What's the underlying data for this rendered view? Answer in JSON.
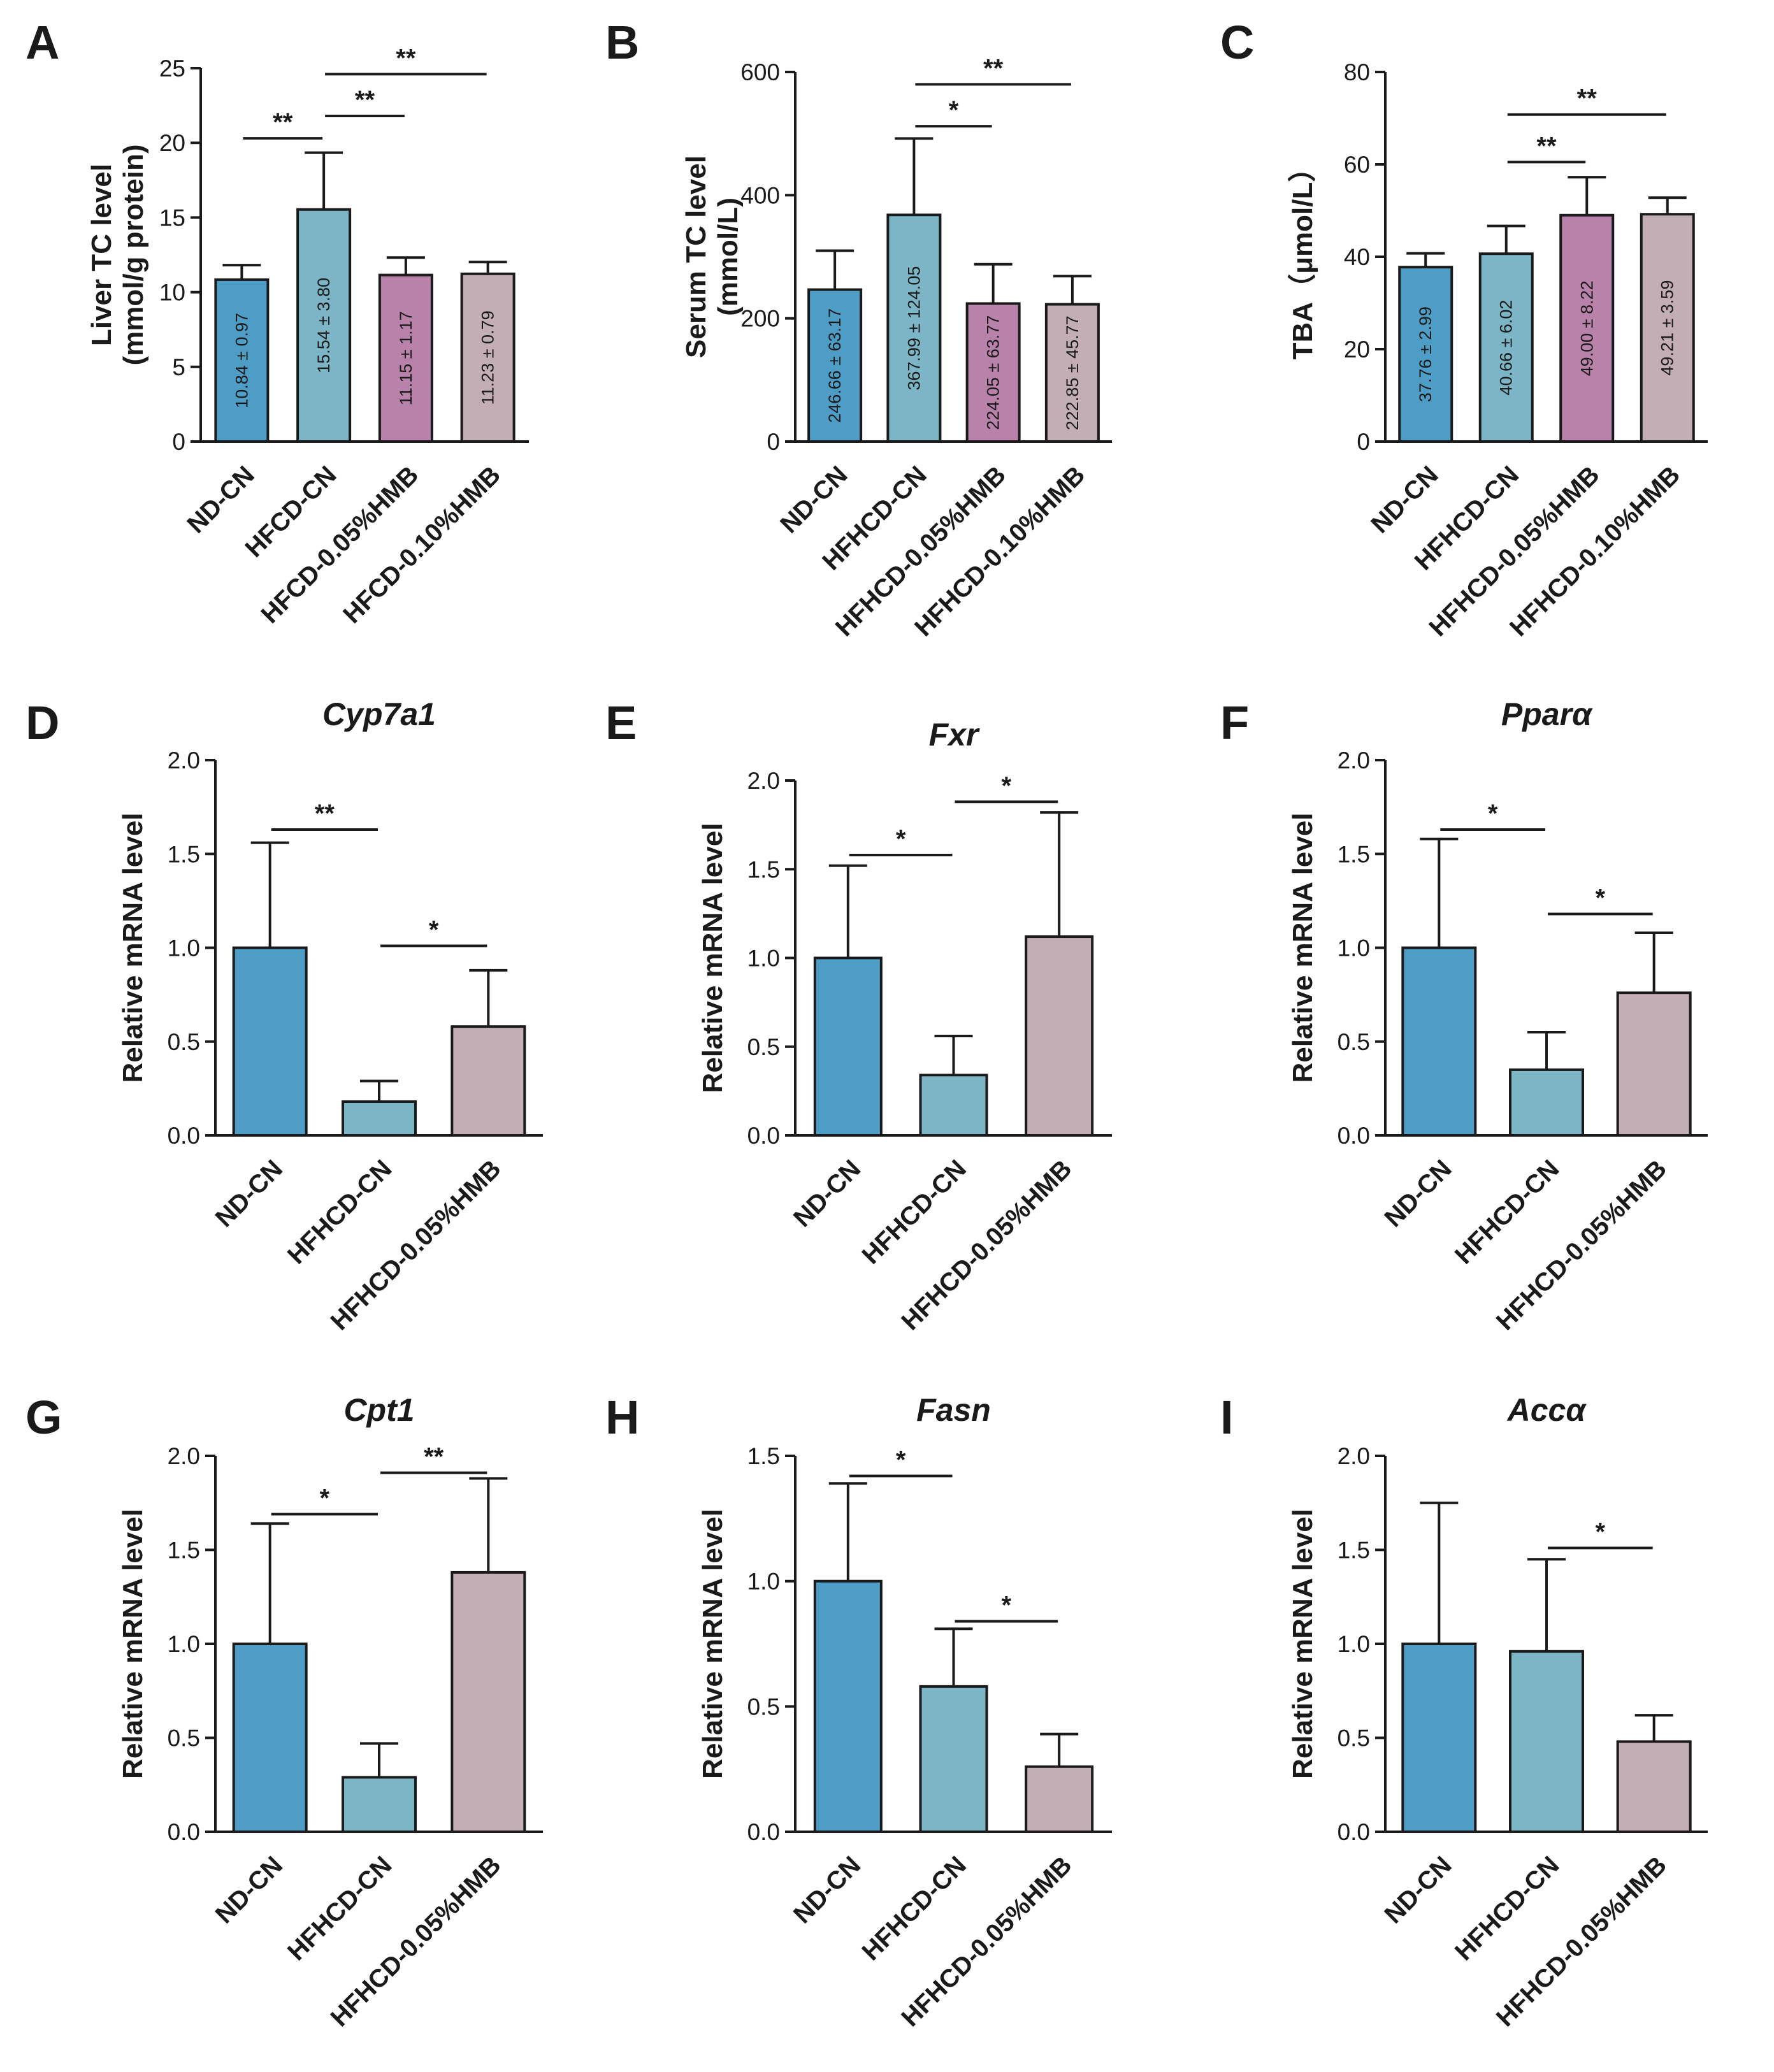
{
  "chart_data": [
    {
      "id": "A",
      "type": "bar",
      "title": "",
      "ylabel": "Liver TC level",
      "ylabel2": "(mmol/g protein)",
      "xlabel": "",
      "ylim": [
        0,
        25
      ],
      "yticks": [
        "0",
        "5",
        "10",
        "15",
        "20",
        "25"
      ],
      "categories": [
        "ND-CN",
        "HFCD-CN",
        "HFCD-0.05%HMB",
        "HFCD-0.10%HMB"
      ],
      "values": [
        10.84,
        15.54,
        11.15,
        11.23
      ],
      "errors": [
        0.97,
        3.8,
        1.17,
        0.79
      ],
      "value_labels": [
        "10.84 ± 0.97",
        "15.54 ± 3.80",
        "11.15 ± 1.17",
        "11.23 ± 0.79"
      ],
      "colors": [
        "#4e9dc6",
        "#7cb6c6",
        "#b882aa",
        "#c4aeb6"
      ],
      "significance": [
        {
          "from": 0,
          "to": 1,
          "label": "**",
          "y": 20.3
        },
        {
          "from": 1,
          "to": 2,
          "label": "**",
          "y": 21.8
        },
        {
          "from": 1,
          "to": 3,
          "label": "**",
          "y": 24.6
        }
      ]
    },
    {
      "id": "B",
      "type": "bar",
      "title": "",
      "ylabel": "Serum TC level",
      "ylabel2": "(mmol/L)",
      "xlabel": "",
      "ylim": [
        0,
        600
      ],
      "yticks": [
        "0",
        "200",
        "400",
        "600"
      ],
      "categories": [
        "ND-CN",
        "HFHCD-CN",
        "HFHCD-0.05%HMB",
        "HFHCD-0.10%HMB"
      ],
      "values": [
        246.66,
        367.99,
        224.05,
        222.85
      ],
      "errors": [
        63.17,
        124.05,
        63.77,
        45.77
      ],
      "value_labels": [
        "246.66 ± 63.17",
        "367.99 ± 124.05",
        "224.05 ± 63.77",
        "222.85 ± 45.77"
      ],
      "colors": [
        "#4e9dc6",
        "#7cb6c6",
        "#b882aa",
        "#c4aeb6"
      ],
      "significance": [
        {
          "from": 1,
          "to": 2,
          "label": "*",
          "y": 512
        },
        {
          "from": 1,
          "to": 3,
          "label": "**",
          "y": 580
        }
      ]
    },
    {
      "id": "C",
      "type": "bar",
      "title": "",
      "ylabel": "TBA（μmol/L）",
      "ylabel2": "",
      "xlabel": "",
      "ylim": [
        0,
        80
      ],
      "yticks": [
        "0",
        "20",
        "40",
        "60",
        "80"
      ],
      "categories": [
        "ND-CN",
        "HFHCD-CN",
        "HFHCD-0.05%HMB",
        "HFHCD-0.10%HMB"
      ],
      "values": [
        37.76,
        40.66,
        49.0,
        49.21
      ],
      "errors": [
        2.99,
        6.02,
        8.22,
        3.59
      ],
      "value_labels": [
        "37.76 ± 2.99",
        "40.66 ± 6.02",
        "49.00 ± 8.22",
        "49.21 ± 3.59"
      ],
      "colors": [
        "#4e9dc6",
        "#7cb6c6",
        "#b882aa",
        "#c4aeb6"
      ],
      "significance": [
        {
          "from": 1,
          "to": 2,
          "label": "**",
          "y": 60.5
        },
        {
          "from": 1,
          "to": 3,
          "label": "**",
          "y": 70.8
        }
      ]
    },
    {
      "id": "D",
      "type": "bar",
      "title": "Cyp7a1",
      "ylabel": "Relative mRNA level",
      "ylabel2": "",
      "xlabel": "",
      "ylim": [
        0,
        2.0
      ],
      "yticks": [
        "0.0",
        "0.5",
        "1.0",
        "1.5",
        "2.0"
      ],
      "categories": [
        "ND-CN",
        "HFHCD-CN",
        "HFHCD-0.05%HMB"
      ],
      "values": [
        1.0,
        0.18,
        0.58
      ],
      "errors": [
        0.56,
        0.11,
        0.3
      ],
      "value_labels": [],
      "colors": [
        "#4e9dc6",
        "#7cb6c6",
        "#c4aeb6"
      ],
      "significance": [
        {
          "from": 0,
          "to": 1,
          "label": "**",
          "y": 1.63
        },
        {
          "from": 1,
          "to": 2,
          "label": "*",
          "y": 1.01
        }
      ]
    },
    {
      "id": "E",
      "type": "bar",
      "title": "Fxr",
      "ylabel": "Relative mRNA level",
      "ylabel2": "",
      "xlabel": "",
      "ylim": [
        0,
        2.0
      ],
      "yticks": [
        "0.0",
        "0.5",
        "1.0",
        "1.5",
        "2.0"
      ],
      "categories": [
        "ND-CN",
        "HFHCD-CN",
        "HFHCD-0.05%HMB"
      ],
      "values": [
        1.0,
        0.34,
        1.12
      ],
      "errors": [
        0.52,
        0.22,
        0.7
      ],
      "value_labels": [],
      "colors": [
        "#4e9dc6",
        "#7cb6c6",
        "#c4aeb6"
      ],
      "significance": [
        {
          "from": 0,
          "to": 1,
          "label": "*",
          "y": 1.58
        },
        {
          "from": 1,
          "to": 2,
          "label": "*",
          "y": 1.88
        }
      ]
    },
    {
      "id": "F",
      "type": "bar",
      "title": "Pparα",
      "ylabel": "Relative mRNA level",
      "ylabel2": "",
      "xlabel": "",
      "ylim": [
        0,
        2.0
      ],
      "yticks": [
        "0.0",
        "0.5",
        "1.0",
        "1.5",
        "2.0"
      ],
      "categories": [
        "ND-CN",
        "HFHCD-CN",
        "HFHCD-0.05%HMB"
      ],
      "values": [
        1.0,
        0.35,
        0.76
      ],
      "errors": [
        0.58,
        0.2,
        0.32
      ],
      "value_labels": [],
      "colors": [
        "#4e9dc6",
        "#7cb6c6",
        "#c4aeb6"
      ],
      "significance": [
        {
          "from": 0,
          "to": 1,
          "label": "*",
          "y": 1.63
        },
        {
          "from": 1,
          "to": 2,
          "label": "*",
          "y": 1.18
        }
      ]
    },
    {
      "id": "G",
      "type": "bar",
      "title": "Cpt1",
      "ylabel": "Relative mRNA level",
      "ylabel2": "",
      "xlabel": "",
      "ylim": [
        0,
        2.0
      ],
      "yticks": [
        "0.0",
        "0.5",
        "1.0",
        "1.5",
        "2.0"
      ],
      "categories": [
        "ND-CN",
        "HFHCD-CN",
        "HFHCD-0.05%HMB"
      ],
      "values": [
        1.0,
        0.29,
        1.38
      ],
      "errors": [
        0.64,
        0.18,
        0.5
      ],
      "value_labels": [],
      "colors": [
        "#4e9dc6",
        "#7cb6c6",
        "#c4aeb6"
      ],
      "significance": [
        {
          "from": 0,
          "to": 1,
          "label": "*",
          "y": 1.69
        },
        {
          "from": 1,
          "to": 2,
          "label": "**",
          "y": 1.91
        }
      ]
    },
    {
      "id": "H",
      "type": "bar",
      "title": "Fasn",
      "ylabel": "Relative mRNA level",
      "ylabel2": "",
      "xlabel": "",
      "ylim": [
        0,
        1.5
      ],
      "yticks": [
        "0.0",
        "0.5",
        "1.0",
        "1.5"
      ],
      "categories": [
        "ND-CN",
        "HFHCD-CN",
        "HFHCD-0.05%HMB"
      ],
      "values": [
        1.0,
        0.58,
        0.26
      ],
      "errors": [
        0.39,
        0.23,
        0.13
      ],
      "value_labels": [],
      "colors": [
        "#4e9dc6",
        "#7cb6c6",
        "#c4aeb6"
      ],
      "significance": [
        {
          "from": 0,
          "to": 1,
          "label": "*",
          "y": 1.42
        },
        {
          "from": 1,
          "to": 2,
          "label": "*",
          "y": 0.84
        }
      ]
    },
    {
      "id": "I",
      "type": "bar",
      "title": "Accα",
      "ylabel": "Relative mRNA level",
      "ylabel2": "",
      "xlabel": "",
      "ylim": [
        0,
        2.0
      ],
      "yticks": [
        "0.0",
        "0.5",
        "1.0",
        "1.5",
        "2.0"
      ],
      "categories": [
        "ND-CN",
        "HFHCD-CN",
        "HFHCD-0.05%HMB"
      ],
      "values": [
        1.0,
        0.96,
        0.48
      ],
      "errors": [
        0.75,
        0.49,
        0.14
      ],
      "value_labels": [],
      "colors": [
        "#4e9dc6",
        "#7cb6c6",
        "#c4aeb6"
      ],
      "significance": [
        {
          "from": 1,
          "to": 2,
          "label": "*",
          "y": 1.51
        }
      ]
    }
  ]
}
